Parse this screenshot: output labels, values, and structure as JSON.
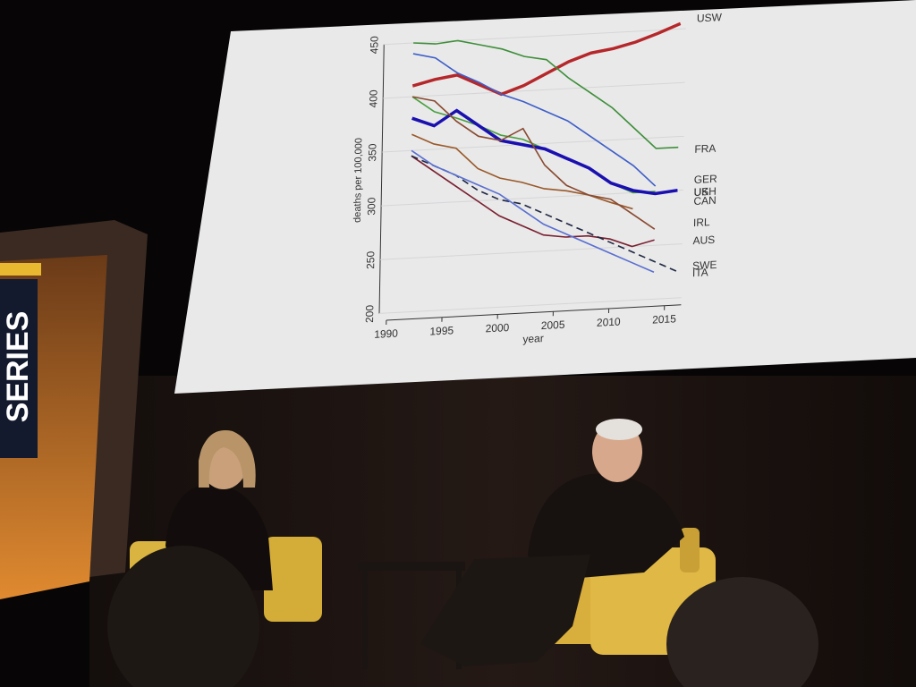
{
  "sign": {
    "text": "SERIES"
  },
  "chart_data": {
    "type": "line",
    "ylabel": "deaths per 100,000",
    "xlabel": "year",
    "x": [
      1992,
      1994,
      1996,
      1998,
      2000,
      2002,
      2004,
      2006,
      2008,
      2010,
      2012,
      2014,
      2016
    ],
    "xlim": [
      1990,
      2016.5
    ],
    "xticks": [
      1990,
      1995,
      2000,
      2005,
      2010,
      2015
    ],
    "ylim": [
      200,
      450
    ],
    "yticks": [
      200,
      250,
      300,
      350,
      400,
      450
    ],
    "series": [
      {
        "name": "USW",
        "color": "#b5272a",
        "values": [
          410,
          415,
          418,
          408,
          398,
          405,
          415,
          425,
          432,
          435,
          440,
          447,
          455
        ]
      },
      {
        "name": "FRA",
        "color": "#3f8f3a",
        "values": [
          450,
          448,
          450,
          445,
          440,
          432,
          428,
          410,
          395,
          380,
          360,
          340,
          340
        ]
      },
      {
        "name": "GER",
        "color": "#3f5fc8",
        "values": [
          440,
          435,
          420,
          410,
          398,
          390,
          380,
          370,
          355,
          340,
          325,
          305,
          null
        ]
      },
      {
        "name": "UK",
        "color": "#4aa040",
        "values": [
          400,
          385,
          378,
          370,
          360,
          355,
          345,
          335,
          325,
          310,
          300,
          300,
          null
        ]
      },
      {
        "name": "CAN",
        "color": "#9a5a2a",
        "values": [
          365,
          355,
          350,
          330,
          320,
          315,
          308,
          305,
          300,
          292,
          285,
          null,
          null
        ]
      },
      {
        "name": "USH",
        "color": "#1a10b0",
        "values": [
          380,
          372,
          385,
          370,
          355,
          350,
          345,
          335,
          325,
          310,
          302,
          298,
          300
        ]
      },
      {
        "name": "IRL",
        "color": "#8a4a30",
        "values": [
          400,
          395,
          375,
          360,
          355,
          365,
          330,
          310,
          300,
          295,
          280,
          265,
          null
        ]
      },
      {
        "name": "AUS",
        "color": "#7a2030",
        "values": [
          345,
          330,
          315,
          300,
          285,
          275,
          265,
          262,
          262,
          258,
          250,
          255,
          null
        ]
      },
      {
        "name": "SWE",
        "color": "#222a44",
        "values": [
          345,
          335,
          325,
          310,
          300,
          295,
          285,
          275,
          265,
          255,
          245,
          235,
          225
        ]
      },
      {
        "name": "ITA",
        "color": "#5a70d0",
        "values": [
          350,
          335,
          325,
          315,
          305,
          290,
          275,
          265,
          255,
          245,
          235,
          225,
          null
        ]
      }
    ]
  }
}
